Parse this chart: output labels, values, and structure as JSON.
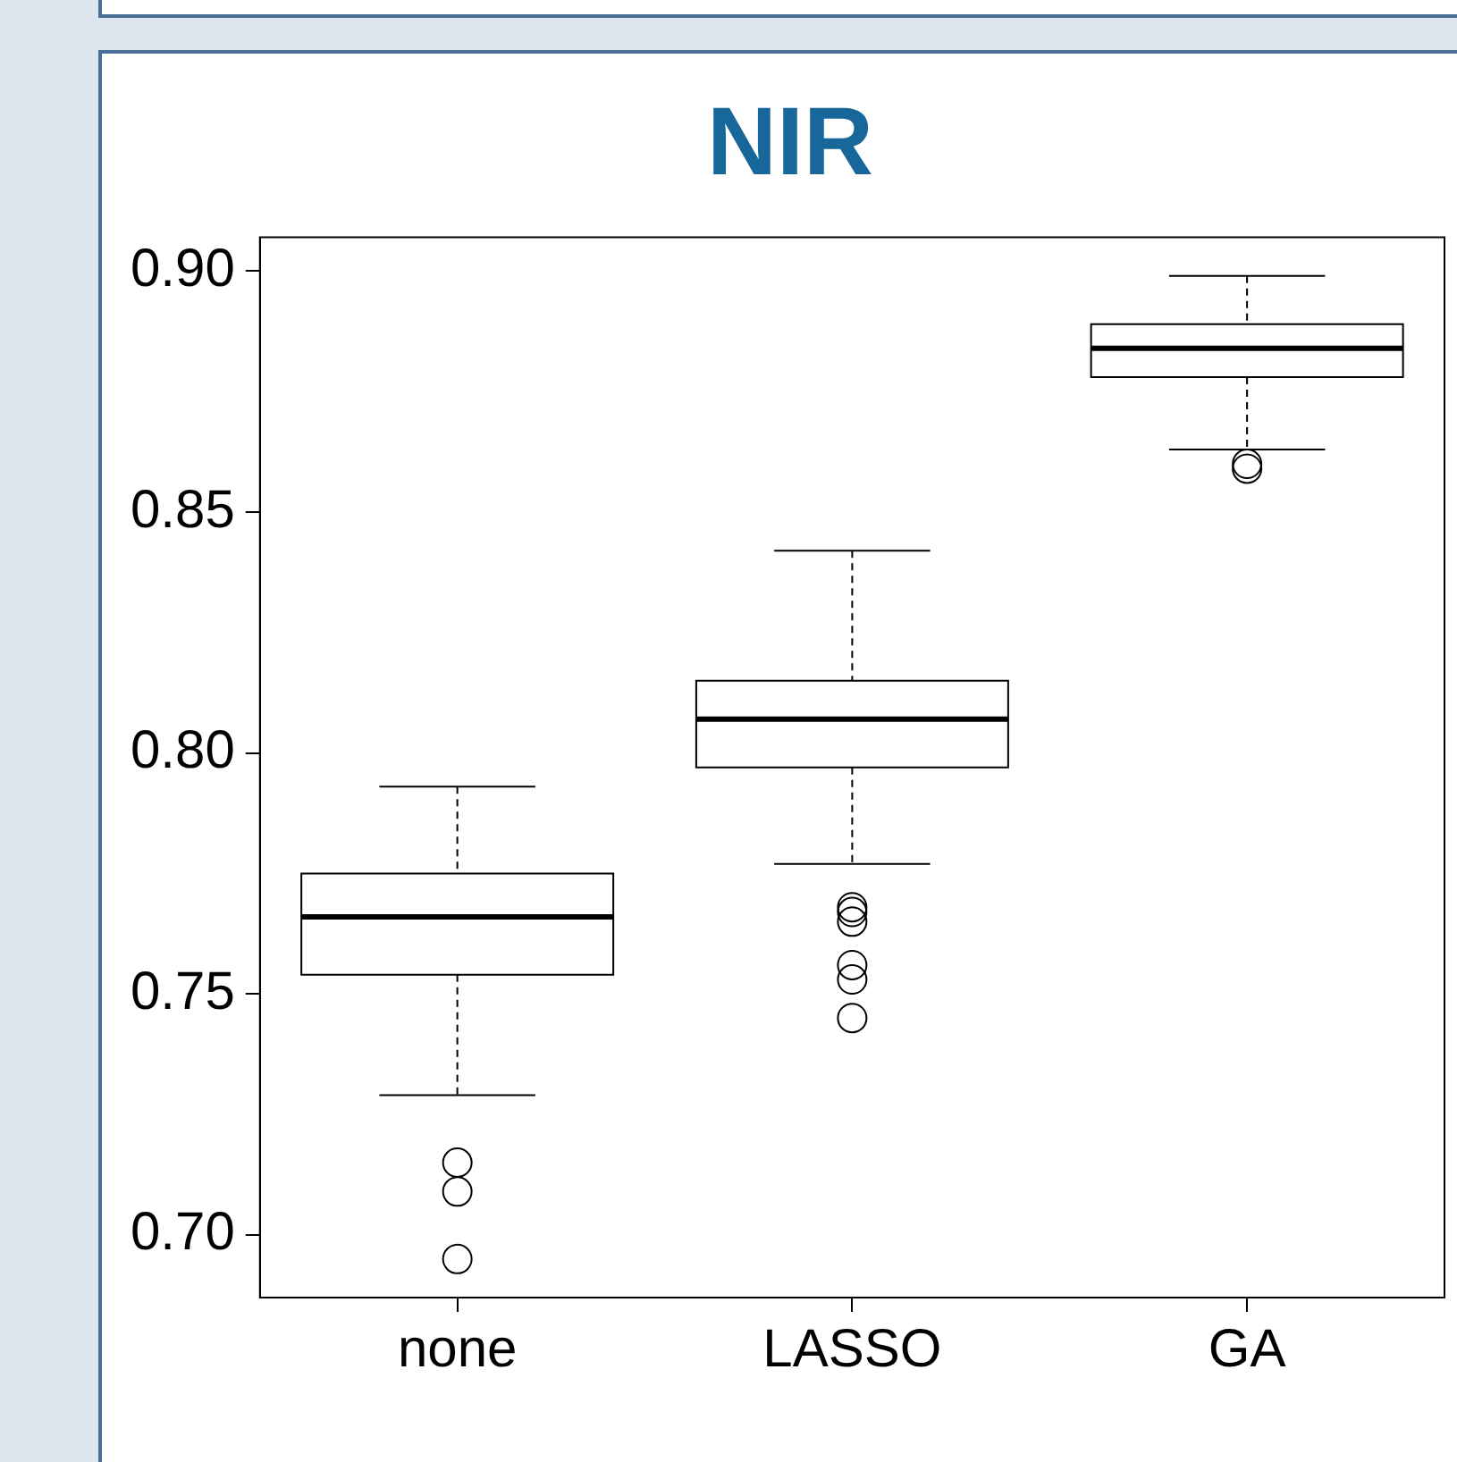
{
  "chart_data": {
    "type": "box",
    "title": "NIR",
    "categories": [
      "none",
      "LASSO",
      "GA"
    ],
    "boxes": [
      {
        "low": 0.729,
        "q1": 0.754,
        "median": 0.766,
        "q3": 0.775,
        "high": 0.793,
        "outliers": [
          0.715,
          0.709,
          0.695
        ]
      },
      {
        "low": 0.777,
        "q1": 0.797,
        "median": 0.807,
        "q3": 0.815,
        "high": 0.842,
        "outliers": [
          0.768,
          0.767,
          0.765,
          0.756,
          0.753,
          0.745
        ]
      },
      {
        "low": 0.863,
        "q1": 0.878,
        "median": 0.884,
        "q3": 0.889,
        "high": 0.899,
        "outliers": [
          0.86,
          0.859
        ]
      }
    ],
    "ylim": [
      0.687,
      0.907
    ],
    "yticks": [
      {
        "value": 0.7,
        "label": "0.70"
      },
      {
        "value": 0.75,
        "label": "0.75"
      },
      {
        "value": 0.8,
        "label": "0.80"
      },
      {
        "value": 0.85,
        "label": "0.85"
      },
      {
        "value": 0.9,
        "label": "0.90"
      }
    ],
    "grid": false,
    "legend": false
  }
}
